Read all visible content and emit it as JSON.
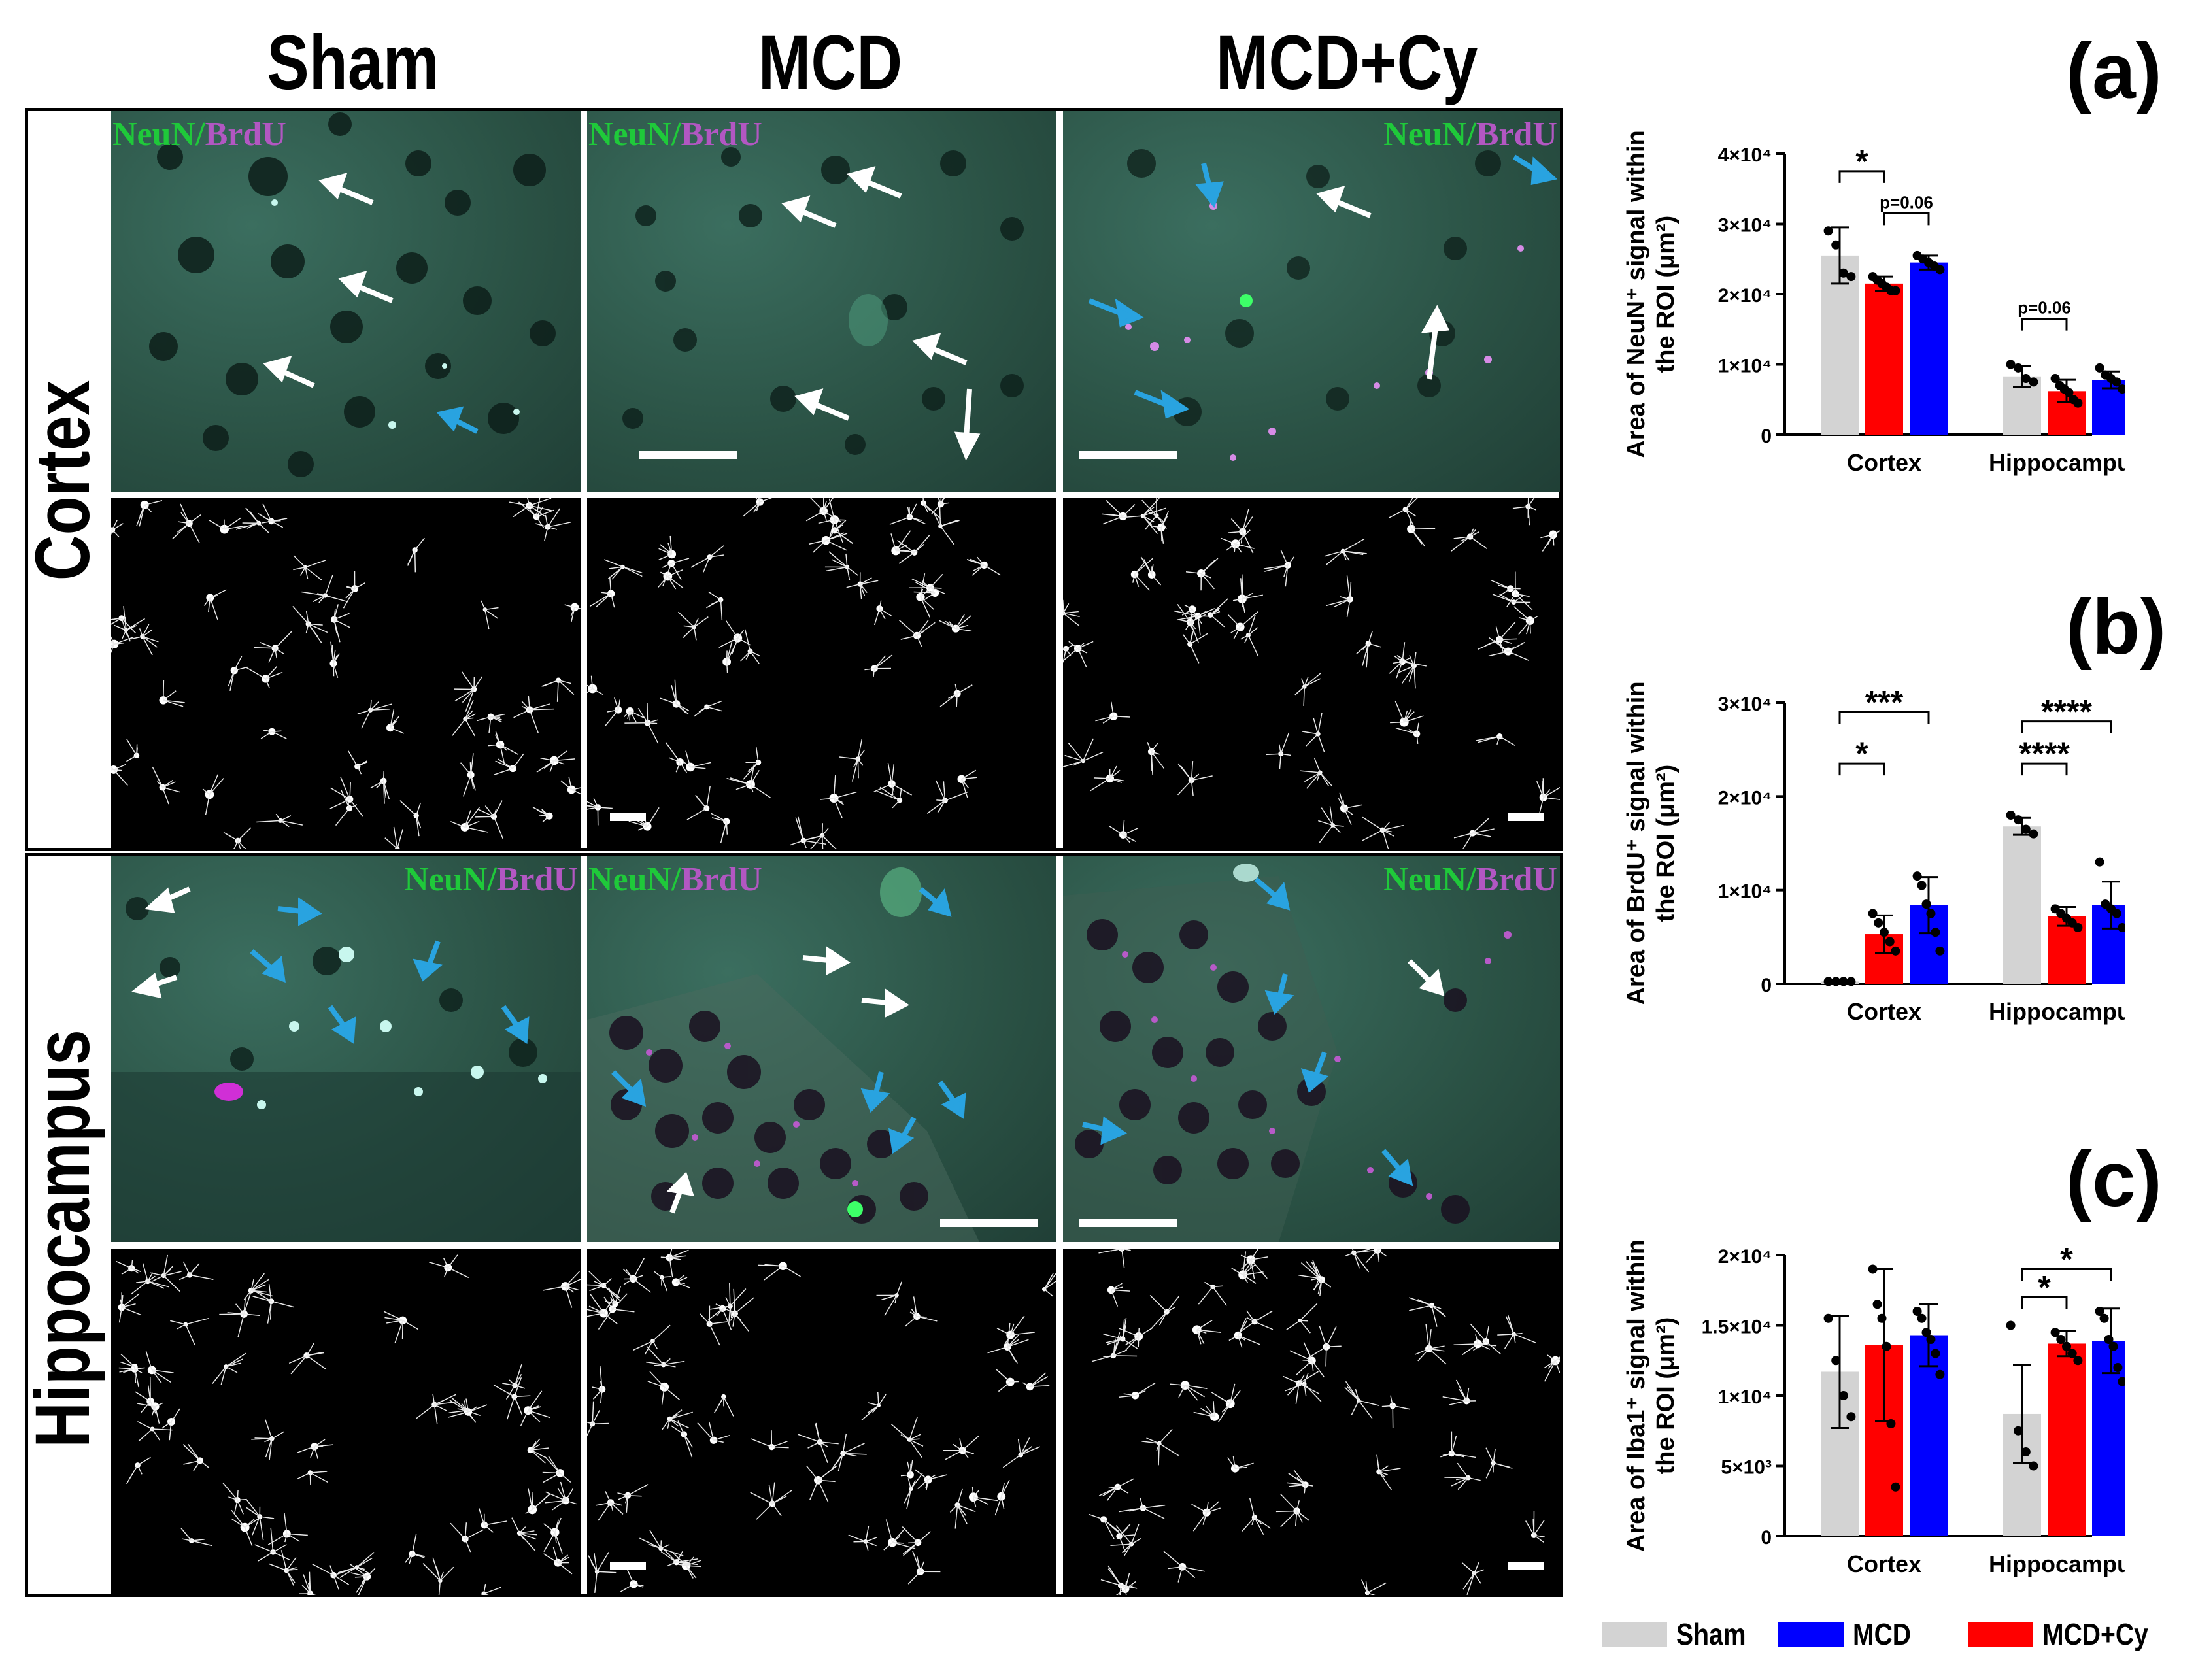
{
  "columns": [
    "Sham",
    "MCD",
    "MCD+Cy"
  ],
  "rows": [
    "Cortex",
    "Hippocampus"
  ],
  "channel_label": {
    "neun": "NeuN",
    "sep": "/",
    "brdu": "BrdU"
  },
  "panel_labels": [
    "(a)",
    "(b)",
    "(c)"
  ],
  "colors": {
    "sham": "#d3d3d3",
    "mcd": "#0000ff",
    "mcdcy": "#ff0000",
    "white_arrow": "#ffffff",
    "blue_arrow": "#29a3e0"
  },
  "legend": [
    {
      "name": "Sham",
      "color": "#d3d3d3"
    },
    {
      "name": "MCD",
      "color": "#0000ff"
    },
    {
      "name": "MCD+Cy",
      "color": "#ff0000"
    }
  ],
  "chart_data": [
    {
      "type": "bar",
      "panel": "(a)",
      "ylabel_line1": "Area of NeuN⁺ signal within",
      "ylabel_line2": "the ROI (μm²)",
      "categories": [
        "Cortex",
        "Hippocampus"
      ],
      "ylim": [
        0,
        40000
      ],
      "yticks": [
        "0",
        "1×10⁴",
        "2×10⁴",
        "3×10⁴",
        "4×10⁴"
      ],
      "ytick_values": [
        0,
        10000,
        20000,
        30000,
        40000
      ],
      "series": [
        {
          "group": "Sham",
          "color": "#d3d3d3",
          "values": [
            25500,
            8300
          ],
          "err": [
            4000,
            1500
          ],
          "points": [
            [
              29000,
              27000,
              23000,
              22500
            ],
            [
              10000,
              9500,
              8000,
              7500
            ]
          ]
        },
        {
          "group": "MCD+Cy",
          "color": "#ff0000",
          "values": [
            21500,
            6200
          ],
          "err": [
            1000,
            1600
          ],
          "points": [
            [
              22500,
              22000,
              21500,
              21000,
              20500,
              20500
            ],
            [
              8000,
              7000,
              6500,
              6000,
              5000,
              4500
            ]
          ]
        },
        {
          "group": "MCD",
          "color": "#0000ff",
          "values": [
            24500,
            7800
          ],
          "err": [
            1000,
            1200
          ],
          "points": [
            [
              25500,
              25000,
              24500,
              24000,
              23500
            ],
            [
              9500,
              8500,
              8000,
              7500,
              6500
            ]
          ]
        }
      ],
      "annotations": [
        {
          "text": "*",
          "cat": 0,
          "from": 0,
          "to": 1,
          "y": 37500
        },
        {
          "text": "p=0.06",
          "cat": 0,
          "from": 1,
          "to": 2,
          "y": 31500
        },
        {
          "text": "p=0.06",
          "cat": 1,
          "from": 0,
          "to": 1,
          "y": 16500
        }
      ]
    },
    {
      "type": "bar",
      "panel": "(b)",
      "ylabel_line1": "Area of BrdU⁺ signal within",
      "ylabel_line2": "the ROI (μm²)",
      "categories": [
        "Cortex",
        "Hippocampus"
      ],
      "ylim": [
        0,
        30000
      ],
      "yticks": [
        "0",
        "1×10⁴",
        "2×10⁴",
        "3×10⁴"
      ],
      "ytick_values": [
        0,
        10000,
        20000,
        30000
      ],
      "series": [
        {
          "group": "Sham",
          "color": "#d3d3d3",
          "values": [
            250,
            16800
          ],
          "err": [
            100,
            900
          ],
          "points": [
            [
              250,
              250,
              250,
              250
            ],
            [
              18000,
              17500,
              16500,
              16000
            ]
          ]
        },
        {
          "group": "MCD+Cy",
          "color": "#ff0000",
          "values": [
            5300,
            7200
          ],
          "err": [
            2000,
            1000
          ],
          "points": [
            [
              7500,
              6500,
              5500,
              4500,
              3500
            ],
            [
              8000,
              7500,
              7000,
              6500,
              6000
            ]
          ]
        },
        {
          "group": "MCD",
          "color": "#0000ff",
          "values": [
            8400,
            8400
          ],
          "err": [
            3000,
            2500
          ],
          "points": [
            [
              11500,
              10500,
              8500,
              7500,
              5500,
              3500
            ],
            [
              13000,
              8500,
              8000,
              7500,
              6000
            ]
          ]
        }
      ],
      "annotations": [
        {
          "text": "***",
          "cat": 0,
          "from": 0,
          "to": 2,
          "y": 29000
        },
        {
          "text": "*",
          "cat": 0,
          "from": 0,
          "to": 1,
          "y": 23500
        },
        {
          "text": "****",
          "cat": 1,
          "from": 0,
          "to": 2,
          "y": 28000
        },
        {
          "text": "****",
          "cat": 1,
          "from": 0,
          "to": 1,
          "y": 23500
        }
      ]
    },
    {
      "type": "bar",
      "panel": "(c)",
      "ylabel_line1": "Area of Iba1⁺ signal within",
      "ylabel_line2": "the ROI (μm²)",
      "categories": [
        "Cortex",
        "Hippocampus"
      ],
      "ylim": [
        0,
        20000
      ],
      "yticks": [
        "0",
        "5×10³",
        "1×10⁴",
        "1.5×10⁴",
        "2×10⁴"
      ],
      "ytick_values": [
        0,
        5000,
        10000,
        15000,
        20000
      ],
      "series": [
        {
          "group": "Sham",
          "color": "#d3d3d3",
          "values": [
            11700,
            8700
          ],
          "err": [
            4000,
            3500
          ],
          "points": [
            [
              15500,
              12500,
              10000,
              8500
            ],
            [
              15000,
              7500,
              6000,
              5000
            ]
          ]
        },
        {
          "group": "MCD+Cy",
          "color": "#ff0000",
          "values": [
            13600,
            13700
          ],
          "err": [
            5400,
            900
          ],
          "points": [
            [
              19000,
              16500,
              15500,
              13500,
              8000,
              3500
            ],
            [
              14500,
              14000,
              13500,
              13000,
              12500
            ]
          ]
        },
        {
          "group": "MCD",
          "color": "#0000ff",
          "values": [
            14300,
            13900
          ],
          "err": [
            2200,
            2300
          ],
          "points": [
            [
              16000,
              15500,
              14500,
              14000,
              13000,
              11500
            ],
            [
              16000,
              15500,
              14000,
              13500,
              12000,
              11000
            ]
          ]
        }
      ],
      "annotations": [
        {
          "text": "*",
          "cat": 1,
          "from": 0,
          "to": 2,
          "y": 19000
        },
        {
          "text": "*",
          "cat": 1,
          "from": 0,
          "to": 1,
          "y": 17000
        }
      ]
    }
  ]
}
